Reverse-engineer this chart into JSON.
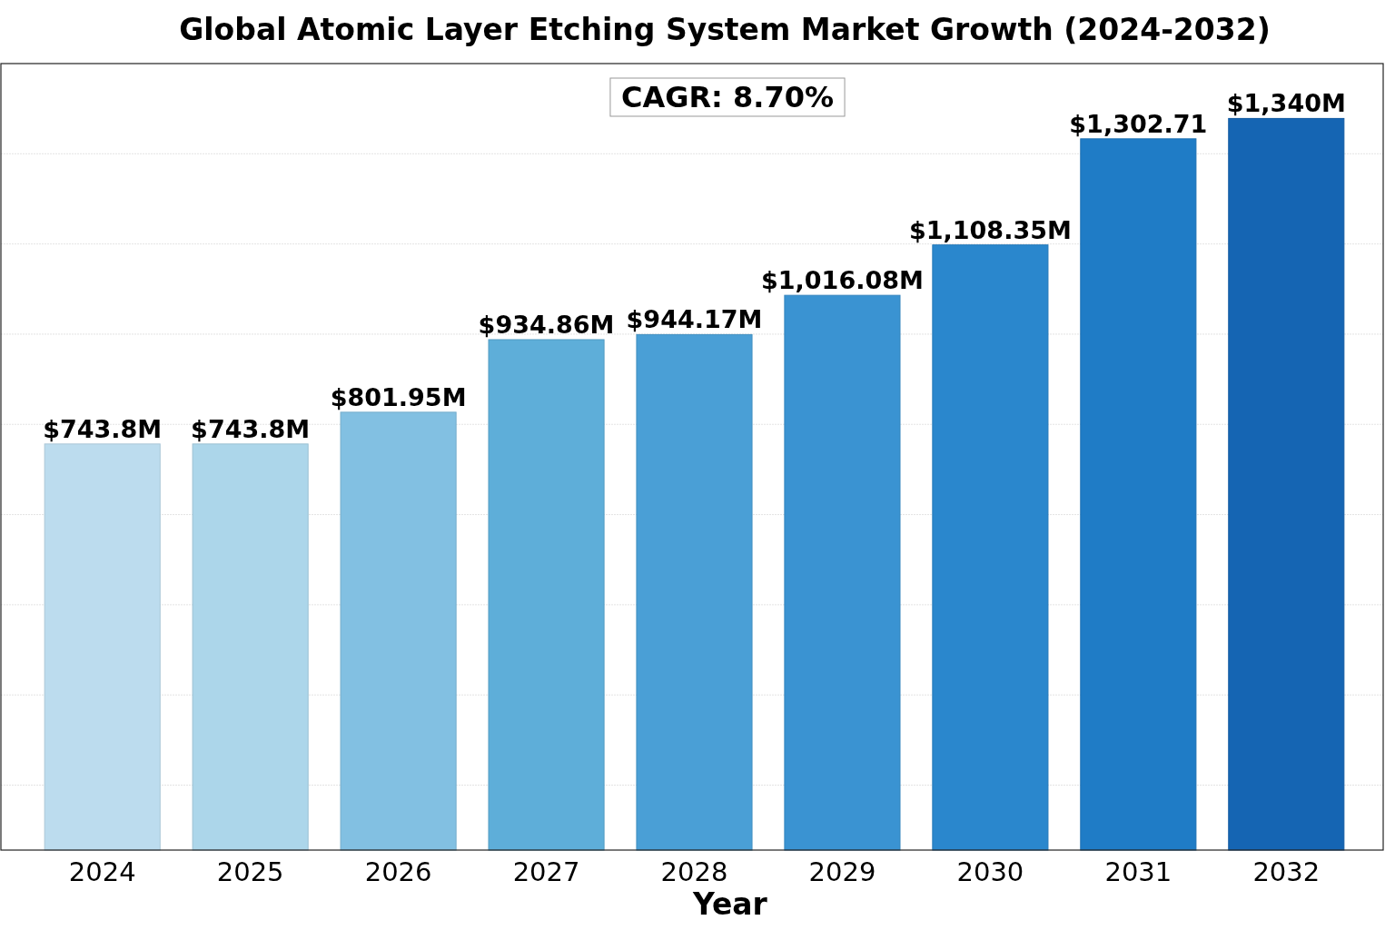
{
  "chart_data": {
    "type": "bar",
    "title": "Global Atomic Layer Etching System Market Growth (2024-2032)",
    "xlabel": "Year",
    "categories": [
      "2024",
      "2025",
      "2026",
      "2027",
      "2028",
      "2029",
      "2030",
      "2031",
      "2032"
    ],
    "values": [
      743.8,
      743.8,
      801.95,
      934.86,
      944.17,
      1016.08,
      1108.35,
      1302.71,
      1340
    ],
    "tick_labels": "x",
    "value_labels": [
      "$743.8M",
      "$743.8M",
      "$801.95M",
      "$934.86M",
      "$944.17M",
      "$1,016.08M",
      "$1,108.35M",
      "$1,302.71",
      "$1,340M"
    ],
    "colors": [
      "#bcdcee",
      "#acd6ea",
      "#82c0e2",
      "#5eaed9",
      "#4a9fd6",
      "#3a93d2",
      "#2a87cd",
      "#1f7cc6",
      "#1565b3"
    ],
    "annotations": [
      "CAGR: 8.70%"
    ],
    "grid": "y"
  }
}
